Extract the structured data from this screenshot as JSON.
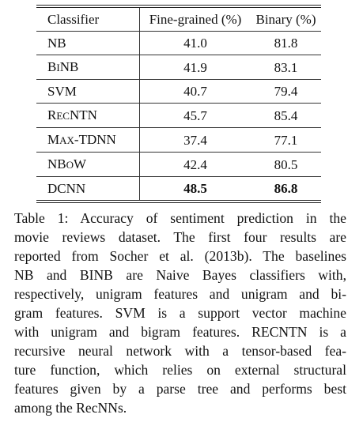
{
  "table": {
    "headers": {
      "classifier": "Classifier",
      "fine_grained": "Fine-grained (%)",
      "binary": "Binary (%)"
    },
    "rows": [
      {
        "classifier": "NB",
        "fine_grained": "41.0",
        "binary": "81.8",
        "bold": false
      },
      {
        "classifier": "BINB",
        "fine_grained": "41.9",
        "binary": "83.1",
        "bold": false
      },
      {
        "classifier": "SVM",
        "fine_grained": "40.7",
        "binary": "79.4",
        "bold": false
      },
      {
        "classifier": "RECNTN",
        "fine_grained": "45.7",
        "binary": "85.4",
        "bold": false
      },
      {
        "classifier": "MAX-TDNN",
        "fine_grained": "37.4",
        "binary": "77.1",
        "bold": false
      },
      {
        "classifier": "NBOW",
        "fine_grained": "42.4",
        "binary": "80.5",
        "bold": false
      },
      {
        "classifier": "DCNN",
        "fine_grained": "48.5",
        "binary": "86.8",
        "bold": true
      }
    ]
  },
  "caption": {
    "lines": [
      "Table 1: Accuracy of sentiment prediction in the",
      "movie reviews dataset.  The first four results are",
      "reported from Socher et al. (2013b). The baselines",
      "NB and BINB are Naive Bayes classifiers with,",
      "respectively, unigram features and unigram and bi-",
      "gram features.  SVM is a support vector machine",
      "with unigram and bigram features. RECNTN is a",
      "recursive neural network with a tensor-based fea-",
      "ture function, which relies on external structural",
      "features given by a parse tree and performs best",
      "among the RecNNs."
    ]
  }
}
